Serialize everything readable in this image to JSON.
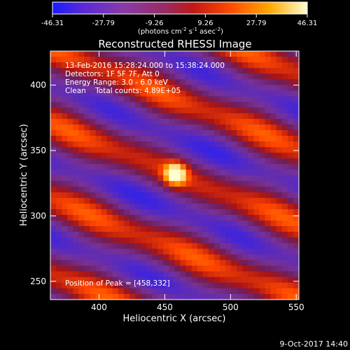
{
  "chart_data": {
    "type": "heatmap",
    "title": "Reconstructed RHESSI Image",
    "xlabel": "Heliocentric X (arcsec)",
    "ylabel": "Heliocentric Y (arcsec)",
    "xlim": [
      363,
      552
    ],
    "ylim": [
      236,
      426
    ],
    "x_ticks": [
      "400",
      "450",
      "500",
      "550"
    ],
    "y_ticks": [
      "250",
      "300",
      "350",
      "400"
    ],
    "x_tick_values": [
      400,
      450,
      500,
      550
    ],
    "y_tick_values": [
      250,
      300,
      350,
      400
    ],
    "colorbar": {
      "min": -46.31,
      "max": 46.31,
      "ticks": [
        "-46.31",
        "-27.79",
        "-9.26",
        "9.26",
        "27.79",
        "46.31"
      ],
      "tick_values": [
        -46.31,
        -27.79,
        -9.26,
        9.26,
        27.79,
        46.31
      ],
      "units_pre": "(photons cm",
      "units_sup1": "-2",
      "units_mid1": " s",
      "units_sup2": "-1",
      "units_mid2": " asec",
      "units_sup3": "-2",
      "units_post": ")"
    },
    "annotations": [
      "13-Feb-2016 15:28:24.000 to 15:38:24.000",
      "Detectors: 1F 5F 7F, Att 0",
      "Energy Range: 3.0 - 6.0 keV",
      "Clean    Total counts: 4.89E+05"
    ],
    "peak_label": "Position of Peak = [458,332]",
    "peak": [
      458,
      332
    ]
  },
  "footer": {
    "timestamp": "9-Oct-2017 14:40"
  }
}
